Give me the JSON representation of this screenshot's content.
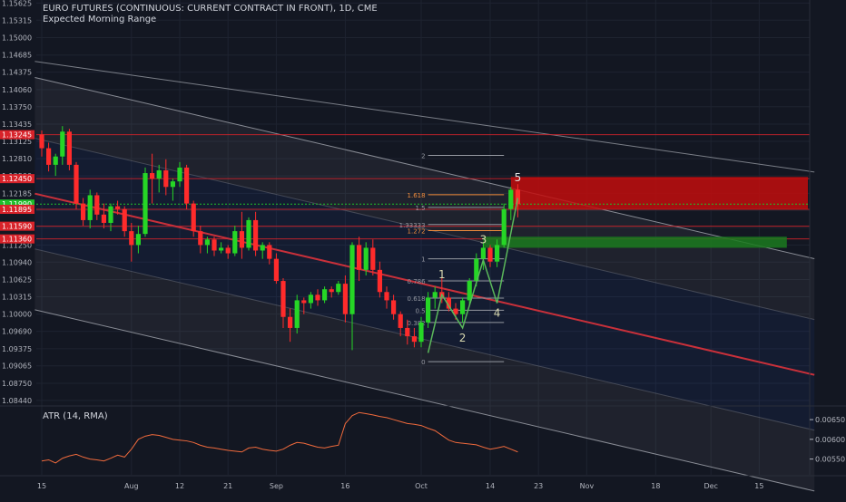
{
  "title": "EURO FUTURES (CONTINUOUS: CURRENT CONTRACT IN FRONT), 1D, CME",
  "subtitle": "Expected Morning Range",
  "colors": {
    "background": "#131722",
    "up": "#26d626",
    "down": "#ff2b2b",
    "grid": "#1e2330",
    "axis_text": "#b2b5be",
    "channel_line": "#9598a1",
    "regression": "#c9303a",
    "resistance": "#d8232a",
    "green_zone": "#1b7a1e",
    "red_zone": "#c20d0d",
    "wave": "#5bb85b",
    "fib": "#9598a1",
    "atr": "#f06a3c",
    "current_price": "#1fbf2b"
  },
  "price_axis": {
    "ticks": [
      "1.15625",
      "1.15315",
      "1.15000",
      "1.14685",
      "1.14375",
      "1.14060",
      "1.13750",
      "1.13435",
      "1.13125",
      "1.12810",
      "1.12500",
      "1.12185",
      "1.11875",
      "1.11565",
      "1.11250",
      "1.10940",
      "1.10625",
      "1.10315",
      "1.10000",
      "1.09690",
      "1.09375",
      "1.09065",
      "1.08750",
      "1.08440"
    ],
    "tick_labels": [
      "1.15625",
      "1.15315",
      "1.15000",
      "1.14685",
      "1.14375",
      "1.14060",
      "1.13750",
      "1.13435",
      "1.13125",
      "1.12810",
      "1.12500",
      "1.12185",
      "1.11875",
      "1.11565",
      "1.11250",
      "1.10940",
      "1.10625",
      "1.10315",
      "1.10000",
      "1.09690",
      "1.09375",
      "1.09065",
      "1.08750",
      "1.08440"
    ],
    "ylim": [
      1.0834,
      1.1568
    ],
    "badges": [
      {
        "value": 1.13245,
        "label": "1.13245",
        "color": "#d8232a"
      },
      {
        "value": 1.1245,
        "label": "1.12450",
        "color": "#d8232a"
      },
      {
        "value": 1.1199,
        "label": "1.11990",
        "color": "#1fbf2b"
      },
      {
        "value": 1.11895,
        "label": "1.11895",
        "color": "#d8232a"
      },
      {
        "value": 1.1159,
        "label": "1.11590",
        "color": "#d8232a"
      },
      {
        "value": 1.1136,
        "label": "1.11360",
        "color": "#d8232a"
      }
    ]
  },
  "time_axis": {
    "labels": [
      {
        "label": "15",
        "i": 0
      },
      {
        "label": "Aug",
        "i": 13
      },
      {
        "label": "12",
        "i": 20
      },
      {
        "label": "21",
        "i": 27
      },
      {
        "label": "Sep",
        "i": 34
      },
      {
        "label": "16",
        "i": 44
      },
      {
        "label": "Oct",
        "i": 55
      },
      {
        "label": "14",
        "i": 65
      },
      {
        "label": "23",
        "i": 72
      },
      {
        "label": "Nov",
        "i": 79
      },
      {
        "label": "18",
        "i": 89
      },
      {
        "label": "Dec",
        "i": 97
      },
      {
        "label": "15",
        "i": 104
      }
    ]
  },
  "atr_axis": {
    "ticks": [
      "0.00650",
      "0.00600",
      "0.00550"
    ],
    "tick_labels": [
      "0.00650",
      "0.00600",
      "0.00550"
    ],
    "ylim": [
      0.0051,
      0.0068
    ]
  },
  "atr_label": "ATR (14, RMA)",
  "fib_levels": [
    {
      "label": "2",
      "value": 1.1287
    },
    {
      "label": "1.618",
      "value": 1.1216
    },
    {
      "label": "1.5",
      "value": 1.1193
    },
    {
      "label": "1.33333",
      "value": 1.1162
    },
    {
      "label": "1.272",
      "value": 1.1151
    },
    {
      "label": "1",
      "value": 1.11
    },
    {
      "label": "0.786",
      "value": 1.106
    },
    {
      "label": "0.618",
      "value": 1.1029
    },
    {
      "label": "0.5",
      "value": 1.1007
    },
    {
      "label": "0.382",
      "value": 1.0985
    },
    {
      "label": "0",
      "value": 1.0914
    }
  ],
  "wave_labels": [
    {
      "label": "1",
      "i": 58,
      "value": 1.1065
    },
    {
      "label": "2",
      "i": 61,
      "value": 1.095
    },
    {
      "label": "3",
      "i": 64,
      "value": 1.1128
    },
    {
      "label": "4",
      "i": 66,
      "value": 1.0995
    },
    {
      "label": "5",
      "i": 69,
      "value": 1.124
    }
  ],
  "chart_data": {
    "type": "candlestick",
    "title": "EURO FUTURES (CONTINUOUS: CURRENT CONTRACT IN FRONT), 1D, CME",
    "ylim": [
      1.0834,
      1.1568
    ],
    "grid": true,
    "candles": [
      {
        "o": 1.1325,
        "h": 1.1332,
        "l": 1.1285,
        "c": 1.13
      },
      {
        "o": 1.13,
        "h": 1.131,
        "l": 1.1258,
        "c": 1.127
      },
      {
        "o": 1.127,
        "h": 1.129,
        "l": 1.125,
        "c": 1.1285
      },
      {
        "o": 1.1285,
        "h": 1.134,
        "l": 1.127,
        "c": 1.133
      },
      {
        "o": 1.133,
        "h": 1.1335,
        "l": 1.126,
        "c": 1.127
      },
      {
        "o": 1.127,
        "h": 1.1275,
        "l": 1.119,
        "c": 1.12
      },
      {
        "o": 1.12,
        "h": 1.121,
        "l": 1.116,
        "c": 1.117
      },
      {
        "o": 1.117,
        "h": 1.1225,
        "l": 1.1155,
        "c": 1.1215
      },
      {
        "o": 1.1215,
        "h": 1.122,
        "l": 1.117,
        "c": 1.118
      },
      {
        "o": 1.118,
        "h": 1.12,
        "l": 1.1155,
        "c": 1.1165
      },
      {
        "o": 1.1165,
        "h": 1.12,
        "l": 1.115,
        "c": 1.1195
      },
      {
        "o": 1.1195,
        "h": 1.1205,
        "l": 1.118,
        "c": 1.119
      },
      {
        "o": 1.119,
        "h": 1.1195,
        "l": 1.114,
        "c": 1.115
      },
      {
        "o": 1.115,
        "h": 1.1165,
        "l": 1.1095,
        "c": 1.1125
      },
      {
        "o": 1.1125,
        "h": 1.116,
        "l": 1.111,
        "c": 1.1145
      },
      {
        "o": 1.1145,
        "h": 1.1265,
        "l": 1.114,
        "c": 1.1255
      },
      {
        "o": 1.1255,
        "h": 1.129,
        "l": 1.12,
        "c": 1.1245
      },
      {
        "o": 1.1245,
        "h": 1.127,
        "l": 1.122,
        "c": 1.126
      },
      {
        "o": 1.126,
        "h": 1.128,
        "l": 1.1215,
        "c": 1.123
      },
      {
        "o": 1.123,
        "h": 1.1245,
        "l": 1.1205,
        "c": 1.124
      },
      {
        "o": 1.124,
        "h": 1.1275,
        "l": 1.123,
        "c": 1.1265
      },
      {
        "o": 1.1265,
        "h": 1.127,
        "l": 1.119,
        "c": 1.12
      },
      {
        "o": 1.12,
        "h": 1.1205,
        "l": 1.114,
        "c": 1.115
      },
      {
        "o": 1.115,
        "h": 1.116,
        "l": 1.111,
        "c": 1.1125
      },
      {
        "o": 1.1125,
        "h": 1.114,
        "l": 1.111,
        "c": 1.1135
      },
      {
        "o": 1.1135,
        "h": 1.114,
        "l": 1.1105,
        "c": 1.1115
      },
      {
        "o": 1.1115,
        "h": 1.113,
        "l": 1.111,
        "c": 1.112
      },
      {
        "o": 1.112,
        "h": 1.1125,
        "l": 1.11,
        "c": 1.111
      },
      {
        "o": 1.111,
        "h": 1.116,
        "l": 1.1105,
        "c": 1.115
      },
      {
        "o": 1.115,
        "h": 1.1185,
        "l": 1.11,
        "c": 1.112
      },
      {
        "o": 1.112,
        "h": 1.1175,
        "l": 1.1115,
        "c": 1.117
      },
      {
        "o": 1.117,
        "h": 1.1185,
        "l": 1.1105,
        "c": 1.1115
      },
      {
        "o": 1.1115,
        "h": 1.113,
        "l": 1.11,
        "c": 1.1125
      },
      {
        "o": 1.1125,
        "h": 1.113,
        "l": 1.109,
        "c": 1.11
      },
      {
        "o": 1.11,
        "h": 1.111,
        "l": 1.1055,
        "c": 1.106
      },
      {
        "o": 1.106,
        "h": 1.1065,
        "l": 1.0975,
        "c": 1.0995
      },
      {
        "o": 1.0995,
        "h": 1.101,
        "l": 1.095,
        "c": 1.0975
      },
      {
        "o": 1.0975,
        "h": 1.1035,
        "l": 1.0965,
        "c": 1.1025
      },
      {
        "o": 1.1025,
        "h": 1.103,
        "l": 1.1,
        "c": 1.102
      },
      {
        "o": 1.102,
        "h": 1.104,
        "l": 1.101,
        "c": 1.1035
      },
      {
        "o": 1.1035,
        "h": 1.1045,
        "l": 1.1015,
        "c": 1.1025
      },
      {
        "o": 1.1025,
        "h": 1.105,
        "l": 1.102,
        "c": 1.1045
      },
      {
        "o": 1.1045,
        "h": 1.105,
        "l": 1.103,
        "c": 1.104
      },
      {
        "o": 1.104,
        "h": 1.106,
        "l": 1.1035,
        "c": 1.1055
      },
      {
        "o": 1.1055,
        "h": 1.107,
        "l": 1.0985,
        "c": 1.1
      },
      {
        "o": 1.1,
        "h": 1.113,
        "l": 1.0935,
        "c": 1.1125
      },
      {
        "o": 1.1125,
        "h": 1.114,
        "l": 1.106,
        "c": 1.108
      },
      {
        "o": 1.108,
        "h": 1.113,
        "l": 1.107,
        "c": 1.112
      },
      {
        "o": 1.112,
        "h": 1.1135,
        "l": 1.107,
        "c": 1.108
      },
      {
        "o": 1.108,
        "h": 1.1095,
        "l": 1.103,
        "c": 1.104
      },
      {
        "o": 1.104,
        "h": 1.105,
        "l": 1.101,
        "c": 1.1025
      },
      {
        "o": 1.1025,
        "h": 1.1035,
        "l": 1.099,
        "c": 1.1
      },
      {
        "o": 1.1,
        "h": 1.1005,
        "l": 1.096,
        "c": 1.0975
      },
      {
        "o": 1.0975,
        "h": 1.099,
        "l": 1.0945,
        "c": 1.096
      },
      {
        "o": 1.096,
        "h": 1.0975,
        "l": 1.094,
        "c": 1.095
      },
      {
        "o": 1.095,
        "h": 1.0995,
        "l": 1.094,
        "c": 1.0985
      },
      {
        "o": 1.0985,
        "h": 1.104,
        "l": 1.0975,
        "c": 1.103
      },
      {
        "o": 1.103,
        "h": 1.105,
        "l": 1.101,
        "c": 1.104
      },
      {
        "o": 1.104,
        "h": 1.1065,
        "l": 1.102,
        "c": 1.103
      },
      {
        "o": 1.103,
        "h": 1.104,
        "l": 1.1005,
        "c": 1.101
      },
      {
        "o": 1.101,
        "h": 1.102,
        "l": 1.099,
        "c": 1.1
      },
      {
        "o": 1.1,
        "h": 1.103,
        "l": 1.0985,
        "c": 1.1025
      },
      {
        "o": 1.1025,
        "h": 1.1065,
        "l": 1.1015,
        "c": 1.106
      },
      {
        "o": 1.106,
        "h": 1.111,
        "l": 1.105,
        "c": 1.11
      },
      {
        "o": 1.11,
        "h": 1.113,
        "l": 1.108,
        "c": 1.112
      },
      {
        "o": 1.112,
        "h": 1.1125,
        "l": 1.1085,
        "c": 1.1095
      },
      {
        "o": 1.1095,
        "h": 1.1135,
        "l": 1.1085,
        "c": 1.1125
      },
      {
        "o": 1.1125,
        "h": 1.12,
        "l": 1.112,
        "c": 1.119
      },
      {
        "o": 1.119,
        "h": 1.123,
        "l": 1.117,
        "c": 1.1225
      },
      {
        "o": 1.1225,
        "h": 1.1235,
        "l": 1.1175,
        "c": 1.1199
      }
    ],
    "atr": [
      0.00545,
      0.00548,
      0.0054,
      0.00552,
      0.00558,
      0.00562,
      0.00555,
      0.0055,
      0.00548,
      0.00545,
      0.00552,
      0.0056,
      0.00555,
      0.00575,
      0.006,
      0.00608,
      0.00612,
      0.0061,
      0.00605,
      0.006,
      0.00598,
      0.00596,
      0.00592,
      0.00585,
      0.0058,
      0.00578,
      0.00575,
      0.00572,
      0.0057,
      0.00568,
      0.00578,
      0.0058,
      0.00575,
      0.00572,
      0.0057,
      0.00575,
      0.00585,
      0.00592,
      0.0059,
      0.00585,
      0.0058,
      0.00578,
      0.00582,
      0.00585,
      0.0064,
      0.0066,
      0.00668,
      0.00665,
      0.00662,
      0.00658,
      0.00655,
      0.0065,
      0.00645,
      0.0064,
      0.00638,
      0.00635,
      0.00628,
      0.00622,
      0.0061,
      0.00598,
      0.00592,
      0.0059,
      0.00588,
      0.00586,
      0.0058,
      0.00575,
      0.00578,
      0.00582,
      0.00575,
      0.00568
    ]
  }
}
